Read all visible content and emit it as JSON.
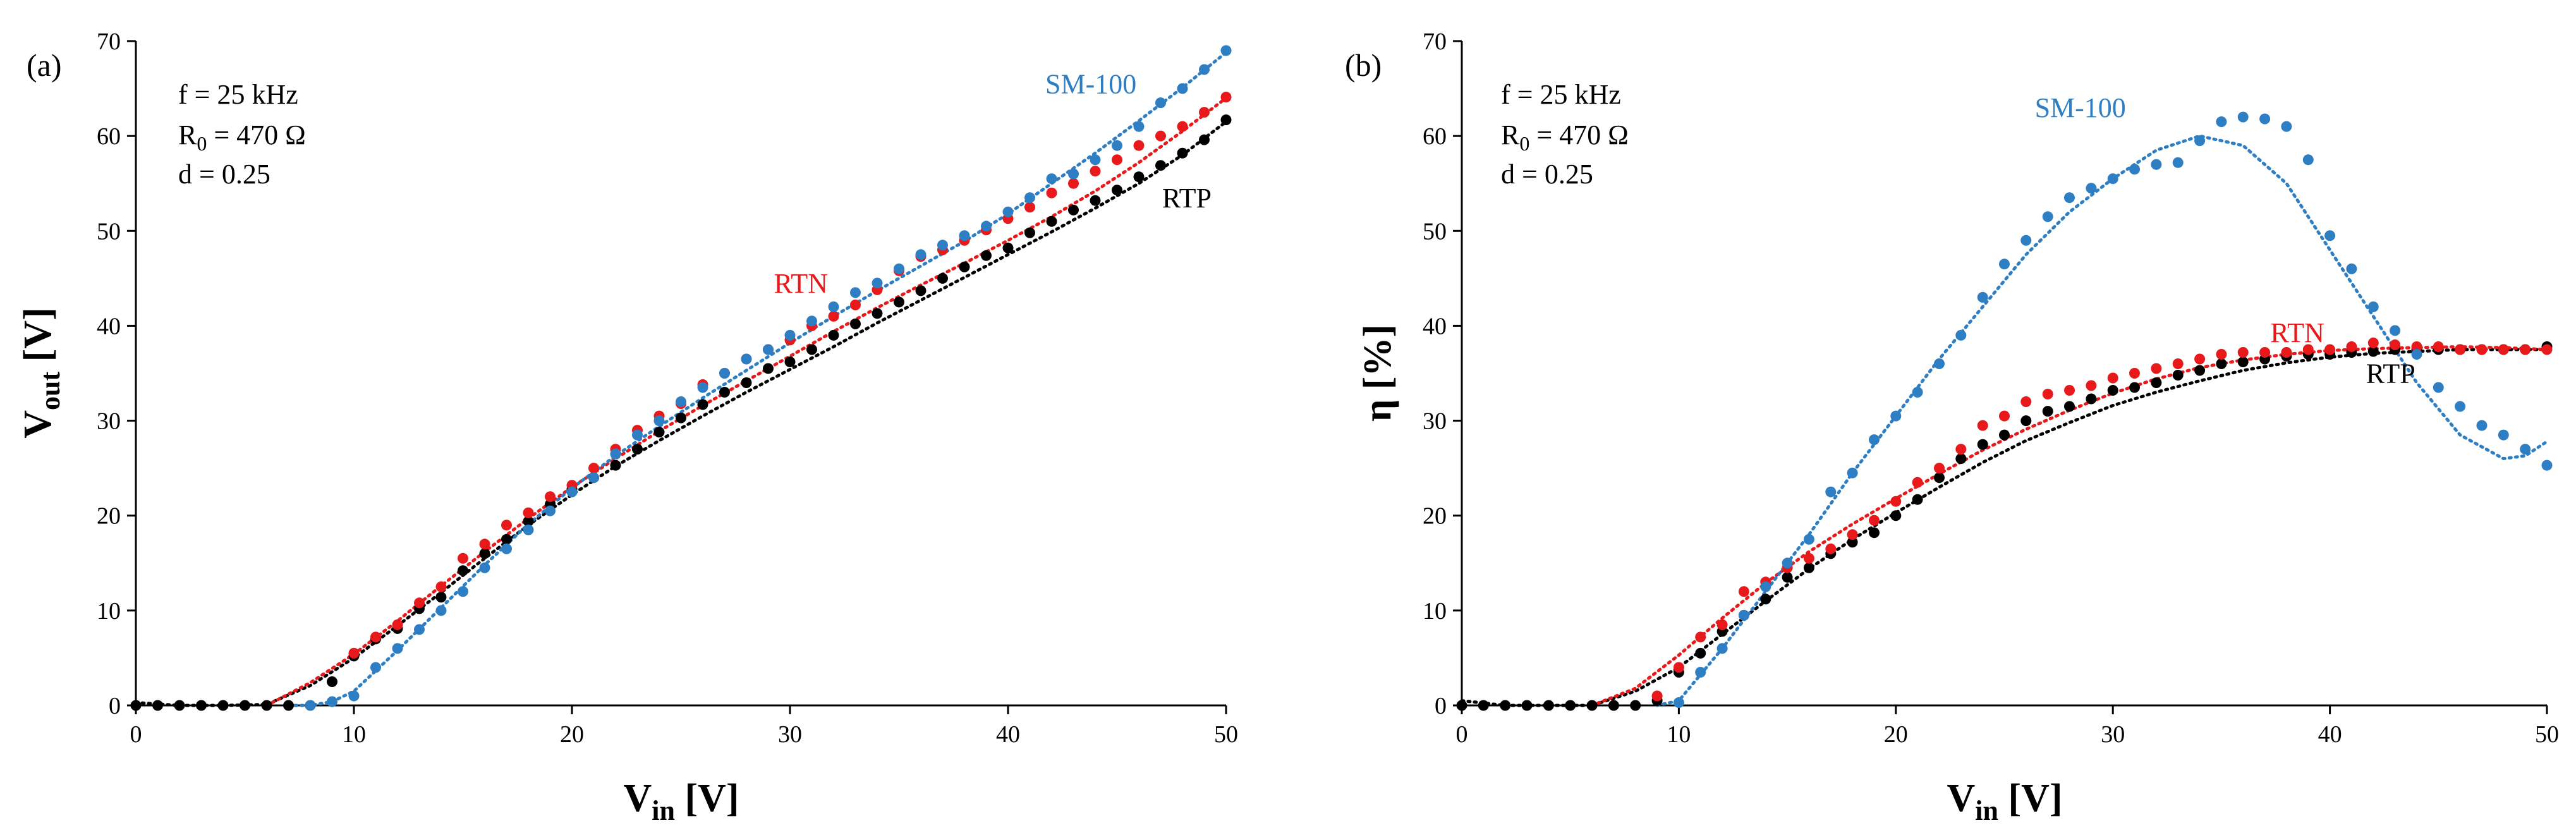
{
  "chart_data": [
    {
      "type": "scatter",
      "panel_label": "(a)",
      "xlabel_main": "V",
      "xlabel_sub": "in",
      "xlabel_unit": " [V]",
      "ylabel_main": "V",
      "ylabel_sub": "out",
      "ylabel_unit": " [V]",
      "xlim": [
        0,
        50
      ],
      "ylim": [
        0,
        70
      ],
      "xticks": [
        0,
        10,
        20,
        30,
        40,
        50
      ],
      "yticks": [
        0,
        10,
        20,
        30,
        40,
        50,
        60,
        70
      ],
      "info": {
        "line1": "f = 25 kHz",
        "line2_main": "R",
        "line2_sub": "0",
        "line2_rest": " = 470 Ω",
        "line3": "d = 0.25"
      },
      "series": [
        {
          "name": "RTP",
          "color": "#000000",
          "label_anchor": [
            48.2,
            52.5
          ],
          "x": [
            0,
            1,
            2,
            3,
            4,
            5,
            6,
            7,
            8,
            9,
            10,
            11,
            12,
            13,
            14,
            15,
            16,
            17,
            18,
            19,
            20,
            21,
            22,
            23,
            24,
            25,
            26,
            27,
            28,
            29,
            30,
            31,
            32,
            33,
            34,
            35,
            36,
            37,
            38,
            39,
            40,
            41,
            42,
            43,
            44,
            45,
            46,
            47,
            48,
            49,
            50
          ],
          "y": [
            0,
            0,
            0,
            0,
            0,
            0,
            0,
            0,
            0,
            2.5,
            5.2,
            7,
            8.1,
            10.2,
            11.4,
            14.2,
            16,
            17.5,
            19.4,
            21.2,
            22.8,
            24,
            25.3,
            27,
            28.8,
            30.3,
            31.7,
            33,
            34,
            35.5,
            36.2,
            37.5,
            39,
            40.2,
            41.3,
            42.5,
            43.7,
            45,
            46.2,
            47.4,
            48.2,
            49.8,
            51,
            52.2,
            53.2,
            54.3,
            55.7,
            56.9,
            58.2,
            59.6,
            61.7
          ],
          "fit_x": [
            0,
            2,
            4,
            6,
            8,
            10,
            12,
            14,
            16,
            18,
            20,
            22,
            24,
            26,
            28,
            30,
            32,
            34,
            36,
            38,
            40,
            42,
            44,
            46,
            48,
            50
          ],
          "fit_y": [
            0.3,
            0,
            0,
            0.1,
            2.1,
            5,
            8.4,
            11.9,
            15.5,
            19,
            22.2,
            25.2,
            27.9,
            30.5,
            33,
            35.4,
            37.8,
            40.3,
            42.7,
            45.1,
            47.5,
            49.9,
            52.4,
            55,
            58,
            61.5
          ]
        },
        {
          "name": "RTN",
          "color": "#E8191B",
          "label_anchor": [
            30.5,
            43.5
          ],
          "x": [
            10,
            11,
            12,
            13,
            14,
            15,
            16,
            17,
            18,
            19,
            20,
            21,
            22,
            23,
            24,
            25,
            26,
            27,
            28,
            29,
            30,
            31,
            32,
            33,
            34,
            35,
            36,
            37,
            38,
            39,
            40,
            41,
            42,
            43,
            44,
            45,
            46,
            47,
            48,
            49,
            50
          ],
          "y": [
            5.5,
            7.2,
            8.5,
            10.8,
            12.5,
            15.5,
            17,
            19,
            20.3,
            22,
            23.2,
            25,
            27,
            29,
            30.5,
            31.8,
            33.8,
            35,
            36.5,
            37.5,
            38.5,
            40,
            41,
            42.2,
            43.8,
            45.8,
            47.3,
            48,
            49,
            50.1,
            51.3,
            52.5,
            54,
            55,
            56.3,
            57.5,
            59,
            60,
            61,
            62.5,
            64.1
          ],
          "fit_x": [
            6,
            8,
            10,
            12,
            14,
            16,
            18,
            20,
            22,
            24,
            26,
            28,
            30,
            32,
            34,
            36,
            38,
            40,
            42,
            44,
            46,
            48,
            50
          ],
          "fit_y": [
            0,
            2.4,
            5.4,
            8.9,
            12.6,
            16.2,
            19.7,
            23,
            26,
            28.9,
            31.6,
            34.2,
            36.8,
            39.4,
            41.9,
            44.3,
            46.6,
            49,
            51.5,
            54.2,
            57.2,
            60.5,
            64
          ]
        },
        {
          "name": "SM-100",
          "color": "#2E7EC3",
          "label_anchor": [
            43.8,
            64.5
          ],
          "x": [
            8,
            9,
            10,
            11,
            12,
            13,
            14,
            15,
            16,
            17,
            18,
            19,
            20,
            21,
            22,
            23,
            24,
            25,
            26,
            27,
            28,
            29,
            30,
            31,
            32,
            33,
            34,
            35,
            36,
            37,
            38,
            39,
            40,
            41,
            42,
            43,
            44,
            45,
            46,
            47,
            48,
            49,
            50
          ],
          "y": [
            0,
            0.4,
            1,
            4,
            6,
            8,
            10,
            12,
            14.5,
            16.5,
            18.5,
            20.5,
            22.5,
            24,
            26.5,
            28.5,
            30,
            32,
            33.5,
            35,
            36.5,
            37.5,
            39,
            40.5,
            42,
            43.5,
            44.5,
            46,
            47.5,
            48.5,
            49.5,
            50.5,
            52,
            53.5,
            55.5,
            56,
            57.5,
            59,
            61,
            63.5,
            65,
            67,
            69
          ],
          "fit_x": [
            7,
            8,
            9,
            10,
            12,
            14,
            16,
            18,
            20,
            22,
            24,
            26,
            28,
            30,
            32,
            34,
            36,
            38,
            40,
            42,
            44,
            46,
            48,
            50
          ],
          "fit_y": [
            0,
            0,
            0.4,
            1.5,
            5.8,
            10.3,
            14.8,
            19.1,
            22.9,
            26.3,
            29.4,
            32.4,
            35.3,
            38.2,
            41,
            43.7,
            46.3,
            48.9,
            51.8,
            55,
            58.2,
            61.6,
            65.1,
            68.8
          ]
        }
      ]
    },
    {
      "type": "scatter",
      "panel_label": "(b)",
      "xlabel_main": "V",
      "xlabel_sub": "in",
      "xlabel_unit": " [V]",
      "ylabel_main": "η [%]",
      "xlim": [
        0,
        50
      ],
      "ylim": [
        0,
        70
      ],
      "xticks": [
        0,
        10,
        20,
        30,
        40,
        50
      ],
      "yticks": [
        0,
        10,
        20,
        30,
        40,
        50,
        60,
        70
      ],
      "info": {
        "line1": "f = 25 kHz",
        "line2_main": "R",
        "line2_sub": "0",
        "line2_rest": " = 470 Ω",
        "line3": "d = 0.25"
      },
      "series": [
        {
          "name": "RTP",
          "color": "#000000",
          "label_anchor": [
            42.8,
            34.0
          ],
          "x": [
            0,
            1,
            2,
            3,
            4,
            5,
            6,
            7,
            8,
            9,
            10,
            11,
            12,
            13,
            14,
            15,
            16,
            17,
            18,
            19,
            20,
            21,
            22,
            23,
            24,
            25,
            26,
            27,
            28,
            29,
            30,
            31,
            32,
            33,
            34,
            35,
            36,
            37,
            38,
            39,
            40,
            41,
            42,
            43,
            44,
            45,
            46,
            47,
            48,
            49,
            50
          ],
          "y": [
            0,
            0,
            0,
            0,
            0,
            0,
            0,
            0,
            0,
            0.5,
            3.5,
            5.5,
            7.8,
            9.5,
            11.2,
            13.5,
            14.5,
            16,
            17.2,
            18.2,
            20,
            21.7,
            24,
            26,
            27.5,
            28.5,
            30,
            31,
            31.5,
            32.3,
            33.2,
            33.5,
            34,
            34.8,
            35.3,
            36,
            36.2,
            36.5,
            36.8,
            37,
            37,
            37.2,
            37.3,
            37.5,
            37.5,
            37.5,
            37.5,
            37.5,
            37.5,
            37.5,
            37.8
          ],
          "fit_x": [
            0,
            2,
            4,
            6,
            8,
            10,
            12,
            14,
            16,
            18,
            20,
            22,
            24,
            26,
            28,
            30,
            32,
            34,
            36,
            38,
            40,
            42,
            44,
            46,
            48,
            50
          ],
          "fit_y": [
            0.5,
            0,
            0,
            0,
            1.5,
            4,
            7.5,
            11,
            14.4,
            17.5,
            20.3,
            23,
            25.6,
            27.9,
            29.8,
            31.6,
            33,
            34.2,
            35.3,
            36.1,
            36.7,
            37.1,
            37.3,
            37.5,
            37.5,
            37.5
          ]
        },
        {
          "name": "RTN",
          "color": "#E8191B",
          "label_anchor": [
            38.5,
            38.3
          ],
          "x": [
            9,
            10,
            11,
            12,
            13,
            14,
            15,
            16,
            17,
            18,
            19,
            20,
            21,
            22,
            23,
            24,
            25,
            26,
            27,
            28,
            29,
            30,
            31,
            32,
            33,
            34,
            35,
            36,
            37,
            38,
            39,
            40,
            41,
            42,
            43,
            44,
            45,
            46,
            47,
            48,
            49,
            50
          ],
          "y": [
            1,
            4,
            7.2,
            8.5,
            12,
            13,
            14.5,
            15.5,
            16.5,
            18,
            19.5,
            21.5,
            23.5,
            25,
            27,
            29.5,
            30.5,
            32,
            32.8,
            33.2,
            33.7,
            34.5,
            35,
            35.5,
            36,
            36.5,
            37,
            37.2,
            37.2,
            37.2,
            37.5,
            37.5,
            37.8,
            38.2,
            38,
            37.8,
            37.8,
            37.5,
            37.5,
            37.5,
            37.5,
            37.5
          ],
          "fit_x": [
            6,
            8,
            10,
            12,
            14,
            16,
            18,
            20,
            22,
            24,
            26,
            28,
            30,
            32,
            34,
            36,
            38,
            40,
            42,
            44,
            46,
            48,
            50
          ],
          "fit_y": [
            0,
            1.8,
            5.3,
            9.2,
            12.9,
            16.2,
            19.1,
            21.8,
            24.4,
            26.9,
            29.1,
            31.1,
            32.9,
            34.4,
            35.6,
            36.4,
            37,
            37.4,
            37.6,
            37.7,
            37.8,
            37.7,
            37.5
          ]
        },
        {
          "name": "SM-100",
          "color": "#2E7EC3",
          "label_anchor": [
            28.5,
            62.0
          ],
          "x": [
            10,
            11,
            12,
            13,
            14,
            15,
            16,
            17,
            18,
            19,
            20,
            21,
            22,
            23,
            24,
            25,
            26,
            27,
            28,
            29,
            30,
            31,
            32,
            33,
            34,
            35,
            36,
            37,
            38,
            39,
            40,
            41,
            42,
            43,
            44,
            45,
            46,
            47,
            48,
            49,
            50
          ],
          "y": [
            0.3,
            3.5,
            6,
            9.5,
            12.5,
            15,
            17.5,
            22.5,
            24.5,
            28,
            30.5,
            33,
            36,
            39,
            43,
            46.5,
            49,
            51.5,
            53.5,
            54.5,
            55.5,
            56.5,
            57,
            57.2,
            59.5,
            61.5,
            62,
            61.8,
            61,
            57.5,
            49.5,
            46,
            42,
            39.5,
            37,
            33.5,
            31.5,
            29.5,
            28.5,
            27,
            25.3
          ],
          "fit_x": [
            9,
            10,
            12,
            14,
            16,
            18,
            20,
            22,
            24,
            26,
            28,
            30,
            32,
            34,
            36,
            38,
            40,
            42,
            44,
            46,
            48,
            49,
            50
          ],
          "fit_y": [
            0,
            0.5,
            6,
            12,
            18,
            24.5,
            30.5,
            36.5,
            42,
            47.5,
            52,
            55.5,
            58.5,
            60,
            59,
            55,
            48,
            41,
            34,
            28.5,
            26,
            26.3,
            27.8
          ]
        }
      ]
    }
  ]
}
